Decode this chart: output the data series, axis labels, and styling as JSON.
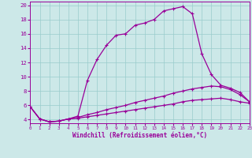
{
  "bg_color": "#cce8e8",
  "grid_color": "#99cccc",
  "line_color": "#990099",
  "xlabel": "Windchill (Refroidissement éolien,°C)",
  "xlim": [
    0,
    23
  ],
  "ylim": [
    3.5,
    20.5
  ],
  "ytick_vals": [
    4,
    6,
    8,
    10,
    12,
    14,
    16,
    18,
    20
  ],
  "xtick_vals": [
    0,
    1,
    2,
    3,
    4,
    5,
    6,
    7,
    8,
    9,
    10,
    11,
    12,
    13,
    14,
    15,
    16,
    17,
    18,
    19,
    20,
    21,
    22,
    23
  ],
  "curve1_x": [
    0,
    1,
    2,
    3,
    4,
    5,
    6,
    7,
    8,
    9,
    10,
    11,
    12,
    13,
    14,
    15,
    16,
    17,
    18,
    19,
    20,
    21,
    22,
    23
  ],
  "curve1_y": [
    5.8,
    4.1,
    3.7,
    3.8,
    4.1,
    4.5,
    9.5,
    12.4,
    14.4,
    15.8,
    16.0,
    17.2,
    17.5,
    18.0,
    19.2,
    19.5,
    19.8,
    18.8,
    13.2,
    10.3,
    8.8,
    8.4,
    7.8,
    6.5
  ],
  "curve2_x": [
    0,
    1,
    2,
    3,
    4,
    5,
    6,
    7,
    8,
    9,
    10,
    11,
    12,
    13,
    14,
    15,
    16,
    17,
    18,
    19,
    20,
    21,
    22,
    23
  ],
  "curve2_y": [
    5.8,
    4.1,
    3.7,
    3.8,
    4.1,
    4.3,
    4.7,
    5.0,
    5.4,
    5.7,
    6.0,
    6.4,
    6.7,
    7.0,
    7.3,
    7.7,
    8.0,
    8.3,
    8.5,
    8.7,
    8.6,
    8.2,
    7.5,
    6.5
  ],
  "curve3_x": [
    0,
    1,
    2,
    3,
    4,
    5,
    6,
    7,
    8,
    9,
    10,
    11,
    12,
    13,
    14,
    15,
    16,
    17,
    18,
    19,
    20,
    21,
    22,
    23
  ],
  "curve3_y": [
    5.8,
    4.1,
    3.7,
    3.8,
    4.1,
    4.2,
    4.4,
    4.6,
    4.8,
    5.0,
    5.2,
    5.4,
    5.6,
    5.8,
    6.0,
    6.2,
    6.5,
    6.7,
    6.8,
    6.9,
    7.0,
    6.8,
    6.5,
    6.3
  ]
}
